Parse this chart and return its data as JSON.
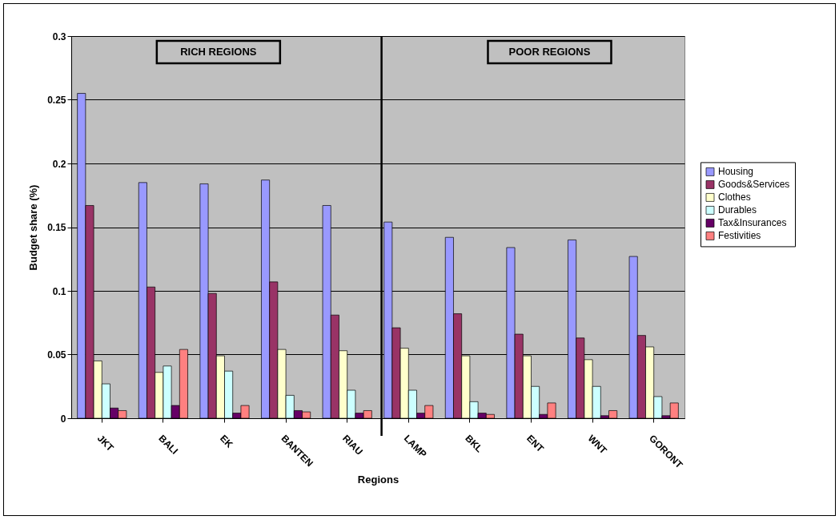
{
  "chart_data": {
    "type": "bar",
    "xlabel": "Regions",
    "ylabel": "Budget share (%)",
    "categories": [
      "JKT",
      "BALI",
      "EK",
      "BANTEN",
      "RIAU",
      "LAMP",
      "BKL",
      "ENT",
      "WNT",
      "GORONT"
    ],
    "series": [
      {
        "name": "Housing",
        "color": "#9999ff",
        "values": [
          0.255,
          0.185,
          0.184,
          0.187,
          0.167,
          0.154,
          0.142,
          0.134,
          0.14,
          0.127
        ]
      },
      {
        "name": "Goods&Services",
        "color": "#993366",
        "values": [
          0.167,
          0.103,
          0.098,
          0.107,
          0.081,
          0.071,
          0.082,
          0.066,
          0.063,
          0.065
        ]
      },
      {
        "name": "Clothes",
        "color": "#ffffcc",
        "values": [
          0.045,
          0.036,
          0.049,
          0.054,
          0.053,
          0.055,
          0.049,
          0.049,
          0.046,
          0.056
        ]
      },
      {
        "name": "Durables",
        "color": "#ccffff",
        "values": [
          0.027,
          0.041,
          0.037,
          0.018,
          0.022,
          0.022,
          0.013,
          0.025,
          0.025,
          0.017
        ]
      },
      {
        "name": "Tax&Insurances",
        "color": "#660066",
        "values": [
          0.008,
          0.01,
          0.004,
          0.006,
          0.004,
          0.004,
          0.004,
          0.003,
          0.002,
          0.002
        ]
      },
      {
        "name": "Festivities",
        "color": "#ff8080",
        "values": [
          0.006,
          0.054,
          0.01,
          0.005,
          0.006,
          0.01,
          0.003,
          0.012,
          0.006,
          0.012
        ]
      }
    ],
    "ylim": [
      0,
      0.3
    ],
    "yticks": [
      0,
      0.05,
      0.1,
      0.15,
      0.2,
      0.25,
      0.3
    ],
    "grid": "y",
    "legend": "right",
    "ref_lines": [
      {
        "axis": "x",
        "value": "LAMP",
        "color": "#000000"
      }
    ],
    "annotations": [
      "RICH REGIONS",
      "POOR REGIONS"
    ]
  }
}
